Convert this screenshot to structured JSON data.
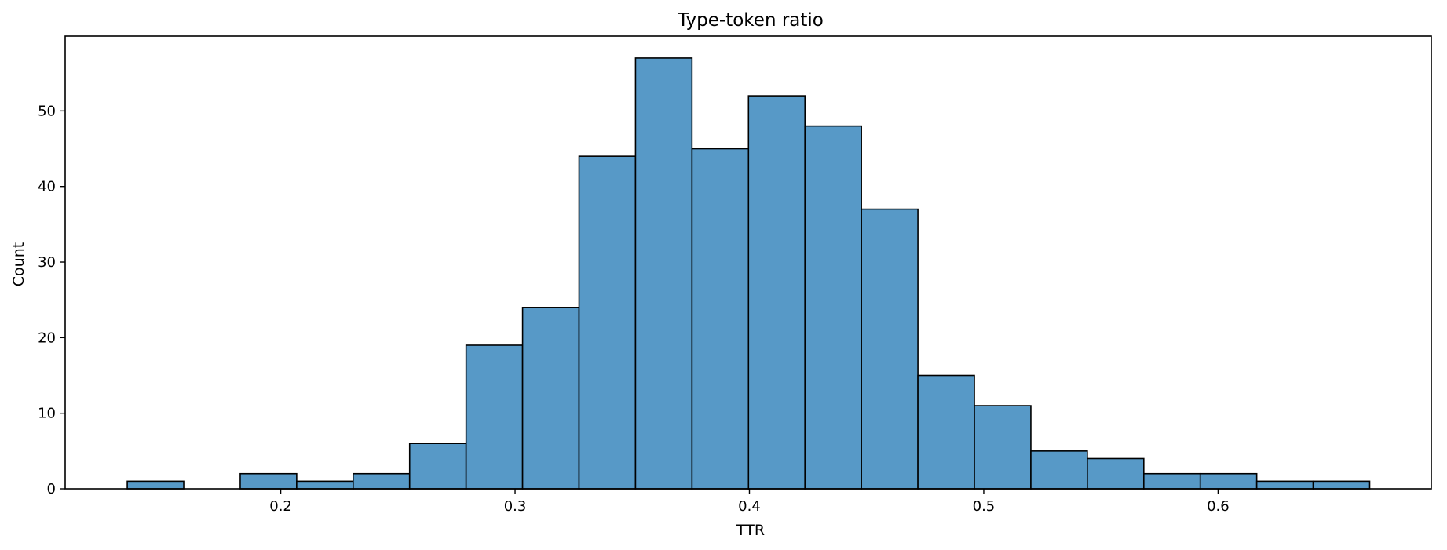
{
  "chart_data": {
    "type": "bar",
    "title": "Type-token ratio",
    "xlabel": "TTR",
    "ylabel": "Count",
    "bin_edges": [
      0.1345,
      0.1586,
      0.1827,
      0.2068,
      0.2309,
      0.255,
      0.2791,
      0.3032,
      0.3273,
      0.3514,
      0.3755,
      0.3996,
      0.4237,
      0.4478,
      0.4719,
      0.496,
      0.5201,
      0.5442,
      0.5683,
      0.5924,
      0.6165,
      0.6406,
      0.6647
    ],
    "values": [
      1,
      0,
      2,
      1,
      2,
      6,
      19,
      24,
      44,
      57,
      45,
      52,
      48,
      37,
      15,
      11,
      5,
      4,
      2,
      2,
      1,
      1
    ],
    "xlim": [
      0.108,
      0.691
    ],
    "ylim": [
      0,
      59.9
    ],
    "xticks": [
      0.2,
      0.3,
      0.4,
      0.5,
      0.6
    ],
    "xtick_labels": [
      "0.2",
      "0.3",
      "0.4",
      "0.5",
      "0.6"
    ],
    "yticks": [
      0,
      10,
      20,
      30,
      40,
      50
    ],
    "ytick_labels": [
      "0",
      "10",
      "20",
      "30",
      "40",
      "50"
    ],
    "grid": false,
    "colors": {
      "bar_fill": "#5799c7",
      "bar_edge": "#000000",
      "axis": "#000000"
    }
  }
}
